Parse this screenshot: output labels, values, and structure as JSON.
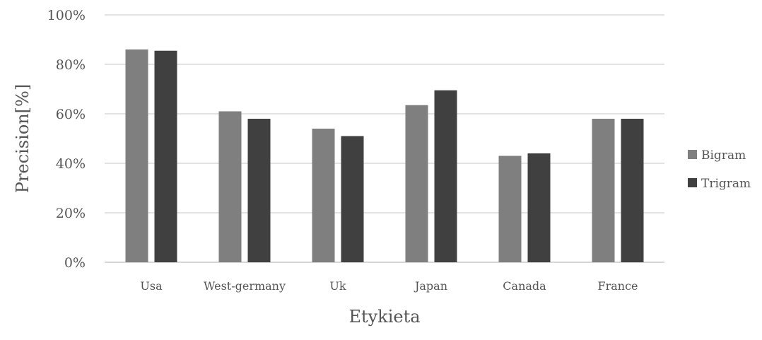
{
  "chart_data": {
    "type": "bar",
    "title": "",
    "xlabel": "Etykieta",
    "ylabel": "Precision[%]",
    "ylim": [
      0,
      100
    ],
    "yticks": [
      0,
      20,
      40,
      60,
      80,
      100
    ],
    "ytick_format": "{v}%",
    "grid": true,
    "legend_position": "right",
    "categories": [
      "Usa",
      "West-germany",
      "Uk",
      "Japan",
      "Canada",
      "France"
    ],
    "series": [
      {
        "name": "Bigram",
        "color": "#7f7f7f",
        "values": [
          86,
          61,
          54,
          63.5,
          43,
          58
        ]
      },
      {
        "name": "Trigram",
        "color": "#404040",
        "values": [
          85.5,
          58,
          51,
          69.5,
          44,
          58
        ]
      }
    ]
  }
}
